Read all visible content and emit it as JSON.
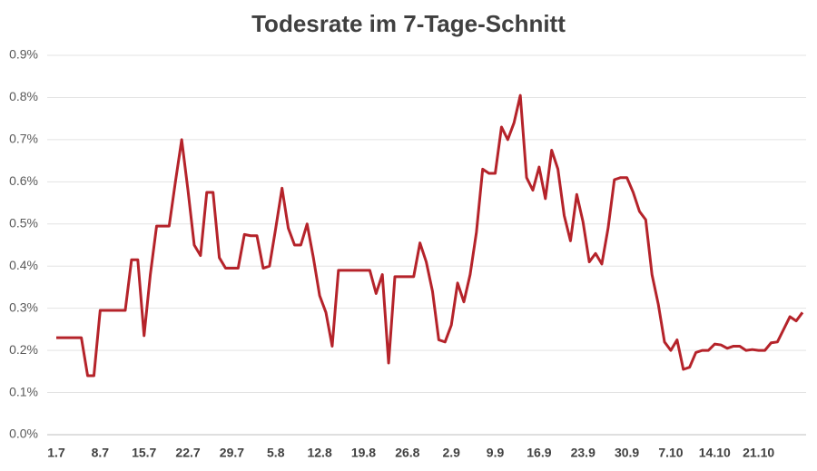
{
  "chart_data": {
    "type": "line",
    "title": "Todesrate im 7-Tage-Schnitt",
    "categories": [
      "1.7",
      null,
      null,
      null,
      null,
      null,
      null,
      "8.7",
      null,
      null,
      null,
      null,
      null,
      null,
      "15.7",
      null,
      null,
      null,
      null,
      null,
      null,
      "22.7",
      null,
      null,
      null,
      null,
      null,
      null,
      "29.7",
      null,
      null,
      null,
      null,
      null,
      null,
      "5.8",
      null,
      null,
      null,
      null,
      null,
      null,
      "12.8",
      null,
      null,
      null,
      null,
      null,
      null,
      "19.8",
      null,
      null,
      null,
      null,
      null,
      null,
      "26.8",
      null,
      null,
      null,
      null,
      null,
      null,
      "2.9",
      null,
      null,
      null,
      null,
      null,
      null,
      "9.9",
      null,
      null,
      null,
      null,
      null,
      null,
      "16.9",
      null,
      null,
      null,
      null,
      null,
      null,
      "23.9",
      null,
      null,
      null,
      null,
      null,
      null,
      "30.9",
      null,
      null,
      null,
      null,
      null,
      null,
      "7.10",
      null,
      null,
      null,
      null,
      null,
      null,
      "14.10",
      null,
      null,
      null,
      null,
      null,
      null,
      "21.10",
      null,
      null,
      null,
      null,
      null,
      null,
      null
    ],
    "series": [
      {
        "color": "#b5232a",
        "values": [
          0.23,
          0.23,
          0.23,
          0.23,
          0.23,
          0.14,
          0.14,
          0.295,
          0.295,
          0.295,
          0.295,
          0.295,
          0.415,
          0.415,
          0.235,
          0.38,
          0.495,
          0.495,
          0.495,
          0.6,
          0.7,
          0.58,
          0.45,
          0.425,
          0.575,
          0.575,
          0.42,
          0.395,
          0.395,
          0.395,
          0.475,
          0.472,
          0.472,
          0.395,
          0.4,
          0.49,
          0.585,
          0.49,
          0.45,
          0.45,
          0.5,
          0.42,
          0.33,
          0.29,
          0.21,
          0.39,
          0.39,
          0.39,
          0.39,
          0.39,
          0.39,
          0.335,
          0.38,
          0.17,
          0.375,
          0.375,
          0.375,
          0.375,
          0.455,
          0.41,
          0.34,
          0.225,
          0.22,
          0.26,
          0.36,
          0.315,
          0.38,
          0.48,
          0.63,
          0.62,
          0.62,
          0.73,
          0.7,
          0.74,
          0.805,
          0.61,
          0.58,
          0.635,
          0.56,
          0.675,
          0.63,
          0.52,
          0.46,
          0.57,
          0.505,
          0.41,
          0.43,
          0.405,
          0.49,
          0.605,
          0.61,
          0.61,
          0.575,
          0.53,
          0.51,
          0.38,
          0.31,
          0.22,
          0.2,
          0.225,
          0.155,
          0.16,
          0.195,
          0.2,
          0.2,
          0.215,
          0.213,
          0.205,
          0.21,
          0.21,
          0.2,
          0.202,
          0.2,
          0.2,
          0.218,
          0.22,
          0.25,
          0.28,
          0.27,
          0.29
        ]
      }
    ],
    "ylim": [
      0,
      0.9
    ],
    "yticks": [
      {
        "value": 0,
        "label": "0.0%"
      },
      {
        "value": 0.1,
        "label": "0.1%"
      },
      {
        "value": 0.2,
        "label": "0.2%"
      },
      {
        "value": 0.3,
        "label": "0.3%"
      },
      {
        "value": 0.4,
        "label": "0.4%"
      },
      {
        "value": 0.5,
        "label": "0.5%"
      },
      {
        "value": 0.6,
        "label": "0.6%"
      },
      {
        "value": 0.7,
        "label": "0.7%"
      },
      {
        "value": 0.8,
        "label": "0.8%"
      },
      {
        "value": 0.9,
        "label": "0.9%"
      }
    ],
    "grid": true
  }
}
